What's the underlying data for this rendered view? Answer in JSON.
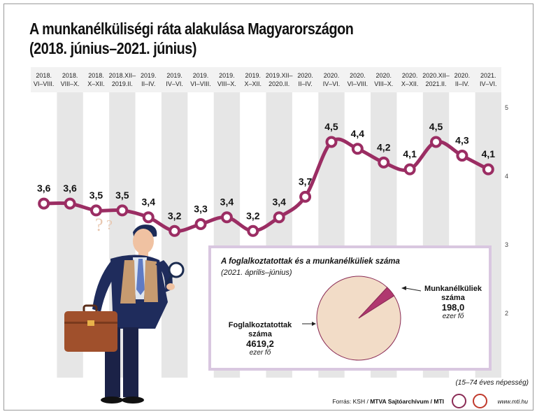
{
  "title_line1": "A munkanélküliségi ráta alakulása Magyarországon",
  "title_line2": "(2018. június–2021. június)",
  "chart_data": {
    "type": "line",
    "categories": [
      [
        "2018.",
        "VI–VIII."
      ],
      [
        "2018.",
        "VIII–X."
      ],
      [
        "2018.",
        "X–XII."
      ],
      [
        "2018.XII–",
        "2019.II."
      ],
      [
        "2019.",
        "II–IV."
      ],
      [
        "2019.",
        "IV–VI."
      ],
      [
        "2019.",
        "VI–VIII."
      ],
      [
        "2019.",
        "VIII–X."
      ],
      [
        "2019.",
        "X–XII."
      ],
      [
        "2019.XII–",
        "2020.II."
      ],
      [
        "2020.",
        "II–IV."
      ],
      [
        "2020.",
        "IV–VI."
      ],
      [
        "2020.",
        "VI–VIII."
      ],
      [
        "2020.",
        "VIII–X."
      ],
      [
        "2020.",
        "X–XII."
      ],
      [
        "2020.XII–",
        "2021.II."
      ],
      [
        "2020.",
        "II–IV."
      ],
      [
        "2021.",
        "IV–VI."
      ]
    ],
    "values": [
      3.6,
      3.6,
      3.5,
      3.5,
      3.4,
      3.2,
      3.3,
      3.4,
      3.2,
      3.4,
      3.7,
      4.5,
      4.4,
      4.2,
      4.1,
      4.5,
      4.3,
      4.1
    ],
    "value_labels": [
      "3,6",
      "3,6",
      "3,5",
      "3,5",
      "3,4",
      "3,2",
      "3,3",
      "3,4",
      "3,2",
      "3,4",
      "3,7",
      "4,5",
      "4,4",
      "4,2",
      "4,1",
      "4,5",
      "4,3",
      "4,1"
    ],
    "ylim": [
      1.6,
      5.0
    ],
    "yticks": [
      2,
      3,
      4,
      5
    ],
    "line_color": "#9b2d63",
    "band_color": "#e6e6e6"
  },
  "inset": {
    "title": "A foglalkoztatottak és a munkanélküliek száma",
    "subtitle": "(2021. április–június)",
    "chart_data": {
      "type": "pie",
      "slices": [
        {
          "name": "Foglalkoztatottak száma",
          "value": 4619.2,
          "value_label": "4619,2",
          "unit": "ezer fő",
          "color": "#f2dcc7"
        },
        {
          "name": "Munkanélküliek száma",
          "value": 198.0,
          "value_label": "198,0",
          "unit": "ezer fő",
          "color": "#b0386f"
        }
      ]
    },
    "employed_name_1": "Foglalkoztatottak",
    "employed_name_2": "száma",
    "unemployed_name_1": "Munkanélküliek",
    "unemployed_name_2": "száma"
  },
  "note": "(15–74 éves népesség)",
  "footer": {
    "source_prefix": "Forrás: KSH / ",
    "source_bold": "MTVA Sajtóarchívum / MTI",
    "url": "www.mti.hu"
  },
  "colors": {
    "accent": "#9b2d63",
    "inset_border": "#d9c7e0"
  }
}
